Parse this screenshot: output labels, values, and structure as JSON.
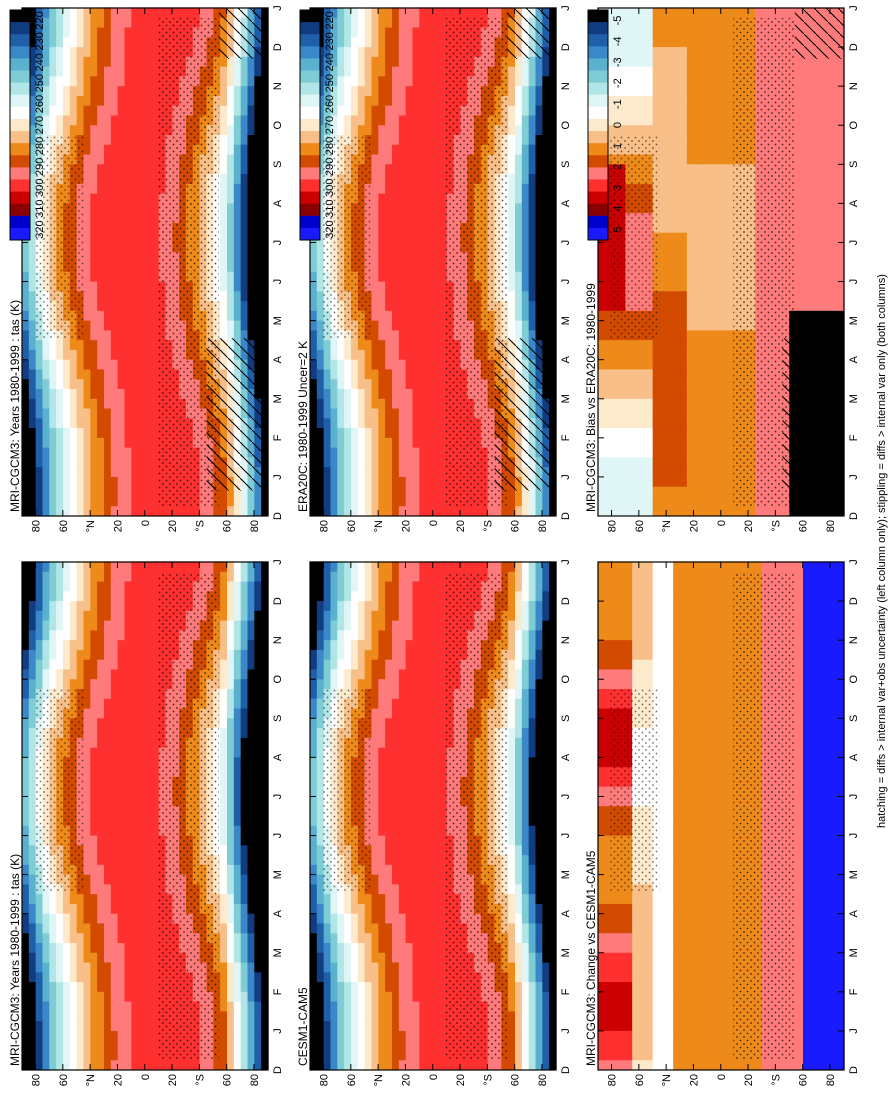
{
  "footnote": "hatching = diffs > internal var+obs uncertainty (left column only); stippling = diffs > internal var only (both columns)",
  "months": [
    "D",
    "J",
    "F",
    "M",
    "A",
    "M",
    "J",
    "J",
    "A",
    "S",
    "O",
    "N",
    "D",
    "J"
  ],
  "lat_ticks": [
    "80",
    "60",
    "°N",
    "20",
    "0",
    "20",
    "°S",
    "60",
    "80"
  ],
  "scales": {
    "absolute": {
      "labels": [
        "320",
        "310",
        "300",
        "290",
        "280",
        "270",
        "260",
        "250",
        "240",
        "230",
        "220"
      ],
      "colors": [
        "#1a1aff",
        "#0000cc",
        "#8b0000",
        "#cc0000",
        "#ff3030",
        "#ff7a7a",
        "#d24b00",
        "#ee8a1a",
        "#f8c088",
        "#fde9cc",
        "#ffffff",
        "#e0f6f6",
        "#b2e6e6",
        "#7fcdd4",
        "#5ab0cf",
        "#3b88c8",
        "#1f5ea8",
        "#123c80",
        "#000000"
      ]
    },
    "difference": {
      "labels": [
        "5",
        "4",
        "3",
        "2",
        "1",
        "0",
        "-1",
        "-2",
        "-3",
        "-4",
        "-5"
      ],
      "colors": [
        "#1a1aff",
        "#0000cc",
        "#8b0000",
        "#cc0000",
        "#ff3030",
        "#ff7a7a",
        "#d24b00",
        "#ee8a1a",
        "#f8c088",
        "#fde9cc",
        "#ffffff",
        "#e0f6f6",
        "#b2e6e6",
        "#7fcdd4",
        "#5ab0cf",
        "#3b88c8",
        "#1f5ea8",
        "#123c80",
        "#000000"
      ]
    }
  },
  "chart_data": [
    {
      "type": "heatmap",
      "title": "MRI-CGCM3: Years 1980-1999 : tas (K)",
      "x": "month",
      "y": "latitude",
      "scale": "absolute",
      "hatching": true,
      "stippling": true
    },
    {
      "type": "heatmap",
      "title": "MRI-CGCM3: Years 1980-1999 : tas (K)",
      "x": "month",
      "y": "latitude",
      "scale": "absolute",
      "hatching": false,
      "stippling": true
    },
    {
      "type": "heatmap",
      "title": "ERA20C: 1980-1999 Uncer=2 K",
      "x": "month",
      "y": "latitude",
      "scale": "absolute",
      "hatching": true,
      "stippling": true
    },
    {
      "type": "heatmap",
      "title": "CESM1-CAM5",
      "x": "month",
      "y": "latitude",
      "scale": "absolute",
      "hatching": false,
      "stippling": true
    },
    {
      "type": "heatmap",
      "title": "MRI-CGCM3: Bias vs ERA20C: 1980-1999",
      "x": "month",
      "y": "latitude",
      "scale": "difference",
      "hatching": true,
      "stippling": true
    },
    {
      "type": "heatmap",
      "title": "MRI-CGCM3: Change vs CESM1-CAM5",
      "x": "month",
      "y": "latitude",
      "scale": "difference",
      "hatching": false,
      "stippling": true
    }
  ]
}
